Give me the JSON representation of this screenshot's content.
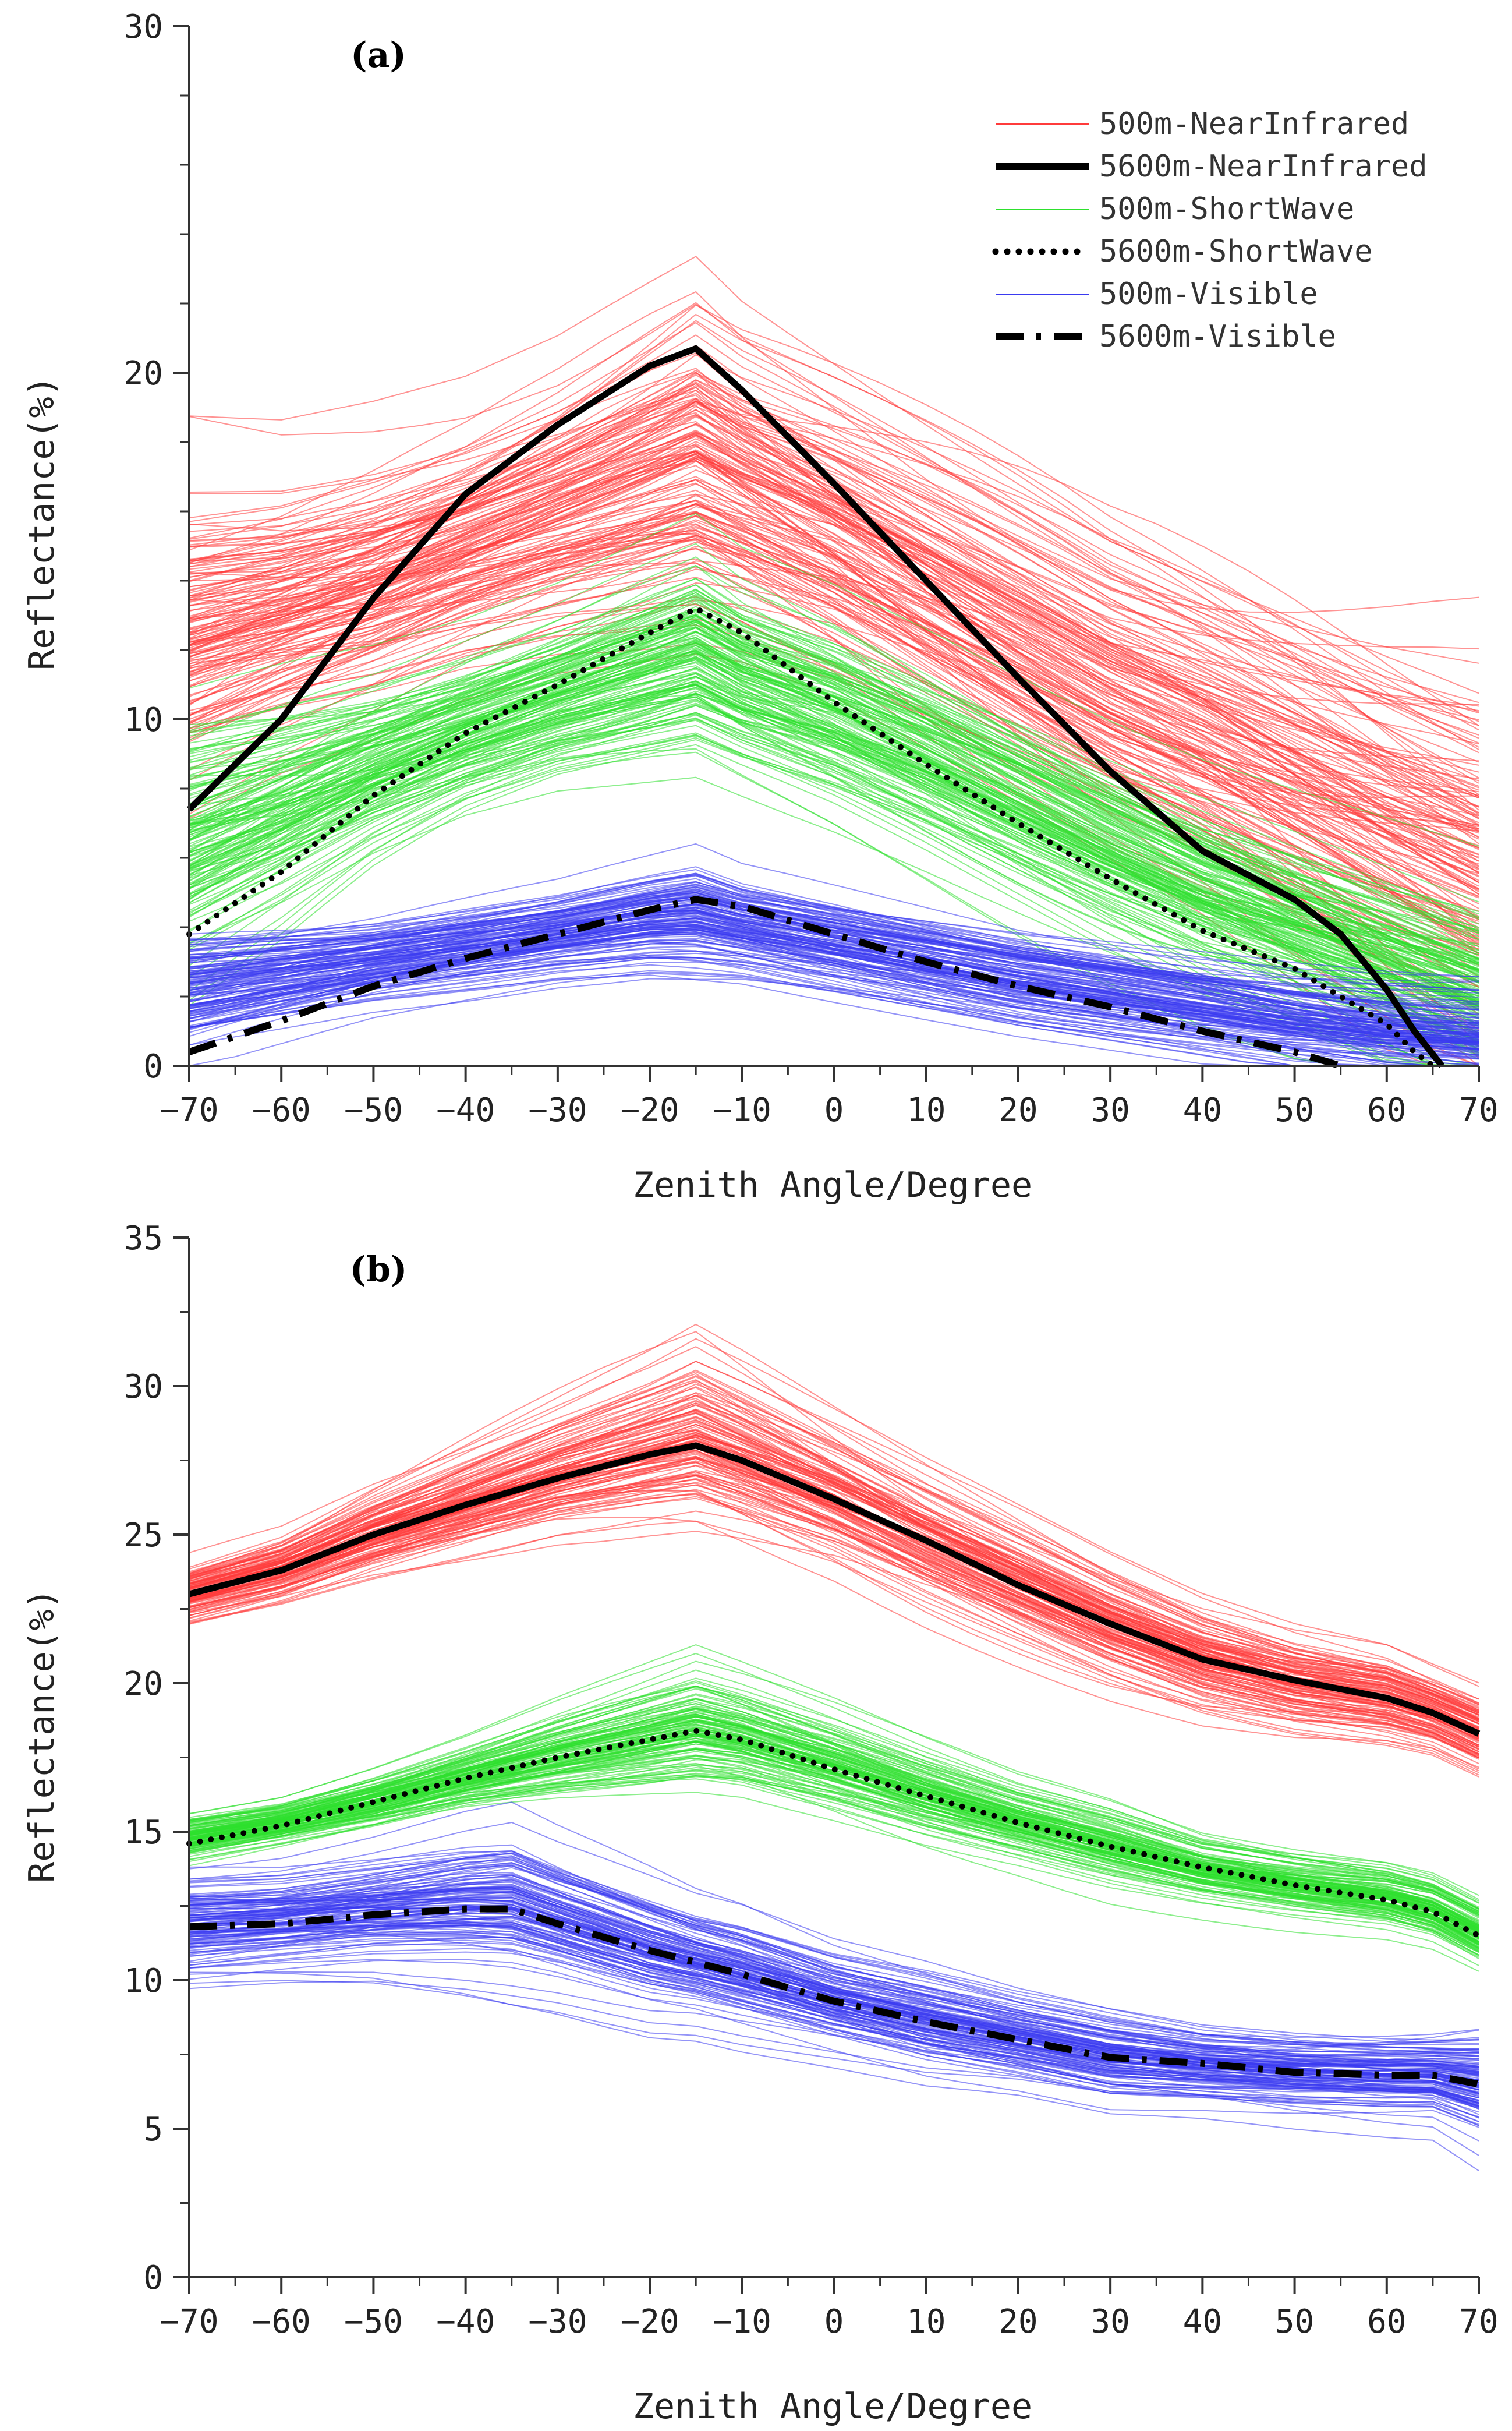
{
  "colors": {
    "near_infrared_500m": "#ff3b3b",
    "shortwave_500m": "#2ee02e",
    "visible_500m": "#3a3af0",
    "mean_5600m": "#000000",
    "axis": "#333333"
  },
  "chart_data": [
    {
      "id": "a",
      "panel_label": "(a)",
      "type": "line",
      "xlabel": "Zenith Angle/Degree",
      "ylabel": "Reflectance(%)",
      "xlim": [
        -70,
        70
      ],
      "ylim": [
        0,
        30
      ],
      "x_ticks": [
        -70,
        -60,
        -50,
        -40,
        -30,
        -20,
        -10,
        0,
        10,
        20,
        30,
        40,
        50,
        60,
        70
      ],
      "y_ticks": [
        0,
        10,
        20,
        30
      ],
      "x_tick_labels": [
        "−70",
        "−60",
        "−50",
        "−40",
        "−30",
        "−20",
        "−10",
        "0",
        "10",
        "20",
        "30",
        "40",
        "50",
        "60",
        "70"
      ],
      "y_tick_labels": [
        "0",
        "10",
        "20",
        "30"
      ],
      "legend": {
        "position": "top-right",
        "entries": [
          {
            "label": "500m-NearInfrared",
            "style": "thin",
            "color_key": "near_infrared_500m"
          },
          {
            "label": "5600m-NearInfrared",
            "style": "solid",
            "color_key": "mean_5600m"
          },
          {
            "label": "500m-ShortWave",
            "style": "thin",
            "color_key": "shortwave_500m"
          },
          {
            "label": "5600m-ShortWave",
            "style": "dotted",
            "color_key": "mean_5600m"
          },
          {
            "label": "500m-Visible",
            "style": "thin",
            "color_key": "visible_500m"
          },
          {
            "label": "5600m-Visible",
            "style": "dashdot",
            "color_key": "mean_5600m"
          }
        ]
      },
      "bands": [
        {
          "name": "500m-NearInfrared",
          "color_key": "near_infrared_500m",
          "count": 160,
          "x": [
            -70,
            -60,
            -50,
            -40,
            -30,
            -20,
            -15,
            -10,
            0,
            10,
            20,
            30,
            40,
            50,
            60,
            70
          ],
          "center": [
            12.5,
            13.2,
            14.0,
            15.0,
            16.0,
            17.0,
            17.5,
            16.8,
            15.5,
            14.0,
            12.5,
            11.0,
            9.8,
            8.5,
            7.2,
            6.0
          ],
          "spread": [
            2.2,
            2.0,
            2.0,
            2.0,
            2.2,
            2.6,
            2.8,
            2.6,
            2.5,
            2.5,
            2.5,
            2.5,
            2.6,
            2.8,
            3.0,
            3.2
          ]
        },
        {
          "name": "500m-ShortWave",
          "color_key": "shortwave_500m",
          "count": 160,
          "x": [
            -70,
            -60,
            -50,
            -40,
            -30,
            -20,
            -15,
            -10,
            0,
            10,
            20,
            30,
            40,
            50,
            60,
            70
          ],
          "center": [
            6.5,
            7.5,
            8.6,
            9.6,
            10.5,
            11.3,
            11.7,
            11.0,
            10.0,
            8.8,
            7.5,
            6.2,
            5.0,
            4.0,
            3.0,
            2.0
          ],
          "spread": [
            2.3,
            2.0,
            1.6,
            1.4,
            1.4,
            1.6,
            1.7,
            1.6,
            1.6,
            1.6,
            1.6,
            1.6,
            1.6,
            1.6,
            1.6,
            1.6
          ]
        },
        {
          "name": "500m-Visible",
          "color_key": "visible_500m",
          "count": 140,
          "x": [
            -70,
            -60,
            -50,
            -40,
            -30,
            -20,
            -15,
            -10,
            0,
            10,
            20,
            30,
            40,
            50,
            60,
            70
          ],
          "center": [
            2.2,
            2.6,
            3.0,
            3.4,
            3.8,
            4.2,
            4.3,
            4.0,
            3.5,
            3.0,
            2.5,
            2.1,
            1.7,
            1.3,
            1.0,
            0.8
          ],
          "spread": [
            0.9,
            0.8,
            0.7,
            0.7,
            0.7,
            0.8,
            0.9,
            0.8,
            0.8,
            0.8,
            0.8,
            0.8,
            0.8,
            0.8,
            0.8,
            0.8
          ]
        }
      ],
      "series": [
        {
          "name": "5600m-NearInfrared",
          "style": "solid",
          "x": [
            -70,
            -60,
            -50,
            -40,
            -30,
            -20,
            -15,
            -10,
            0,
            10,
            20,
            30,
            40,
            50,
            55,
            60,
            63,
            66
          ],
          "y": [
            7.4,
            10.0,
            13.5,
            16.5,
            18.5,
            20.2,
            20.7,
            19.5,
            16.8,
            14.0,
            11.2,
            8.5,
            6.2,
            4.8,
            3.8,
            2.2,
            1.0,
            0.0
          ]
        },
        {
          "name": "5600m-ShortWave",
          "style": "dotted",
          "x": [
            -70,
            -60,
            -50,
            -40,
            -30,
            -20,
            -15,
            -10,
            0,
            10,
            20,
            30,
            40,
            50,
            55,
            60,
            63,
            65
          ],
          "y": [
            3.8,
            5.6,
            7.8,
            9.6,
            11.0,
            12.5,
            13.2,
            12.5,
            10.5,
            8.7,
            7.0,
            5.4,
            3.9,
            2.8,
            2.0,
            1.2,
            0.4,
            0.0
          ]
        },
        {
          "name": "5600m-Visible",
          "style": "dashdot",
          "x": [
            -70,
            -60,
            -50,
            -40,
            -30,
            -20,
            -15,
            -10,
            0,
            10,
            20,
            30,
            40,
            50,
            55
          ],
          "y": [
            0.4,
            1.3,
            2.3,
            3.1,
            3.8,
            4.5,
            4.8,
            4.6,
            3.8,
            3.0,
            2.3,
            1.7,
            1.0,
            0.4,
            0.0
          ]
        }
      ]
    },
    {
      "id": "b",
      "panel_label": "(b)",
      "type": "line",
      "xlabel": "Zenith Angle/Degree",
      "ylabel": "Reflectance(%)",
      "xlim": [
        -70,
        70
      ],
      "ylim": [
        0,
        35
      ],
      "x_ticks": [
        -70,
        -60,
        -50,
        -40,
        -30,
        -20,
        -10,
        0,
        10,
        20,
        30,
        40,
        50,
        60,
        70
      ],
      "y_ticks": [
        0,
        5,
        10,
        15,
        20,
        25,
        30,
        35
      ],
      "x_tick_labels": [
        "−70",
        "−60",
        "−50",
        "−40",
        "−30",
        "−20",
        "−10",
        "0",
        "10",
        "20",
        "30",
        "40",
        "50",
        "60",
        "70"
      ],
      "y_tick_labels": [
        "0",
        "5",
        "10",
        "15",
        "20",
        "25",
        "30",
        "35"
      ],
      "bands": [
        {
          "name": "500m-NearInfrared",
          "color_key": "near_infrared_500m",
          "count": 130,
          "x": [
            -70,
            -60,
            -50,
            -40,
            -30,
            -20,
            -15,
            -10,
            0,
            10,
            20,
            30,
            40,
            50,
            60,
            65,
            70
          ],
          "center": [
            23.0,
            23.8,
            25.0,
            26.0,
            27.0,
            27.8,
            28.2,
            27.6,
            26.3,
            24.8,
            23.4,
            22.0,
            20.8,
            20.0,
            19.5,
            19.0,
            18.3
          ],
          "spread": [
            0.5,
            0.6,
            0.8,
            1.0,
            1.2,
            1.5,
            1.7,
            1.6,
            1.4,
            1.3,
            1.2,
            1.1,
            1.0,
            0.9,
            0.8,
            0.7,
            0.7
          ]
        },
        {
          "name": "500m-ShortWave",
          "color_key": "shortwave_500m",
          "count": 130,
          "x": [
            -70,
            -60,
            -50,
            -40,
            -30,
            -20,
            -15,
            -10,
            0,
            10,
            20,
            30,
            40,
            50,
            60,
            65,
            70
          ],
          "center": [
            14.8,
            15.3,
            16.0,
            16.8,
            17.5,
            18.1,
            18.4,
            18.1,
            17.2,
            16.2,
            15.3,
            14.5,
            13.7,
            13.2,
            12.8,
            12.4,
            11.6
          ],
          "spread": [
            0.4,
            0.4,
            0.5,
            0.6,
            0.8,
            1.0,
            1.1,
            1.0,
            0.9,
            0.8,
            0.7,
            0.7,
            0.6,
            0.6,
            0.6,
            0.6,
            0.6
          ]
        },
        {
          "name": "500m-Visible",
          "color_key": "visible_500m",
          "count": 130,
          "x": [
            -70,
            -60,
            -50,
            -40,
            -35,
            -30,
            -20,
            -15,
            -10,
            0,
            10,
            20,
            30,
            40,
            50,
            60,
            65,
            70
          ],
          "center": [
            11.8,
            12.0,
            12.3,
            12.5,
            12.5,
            12.0,
            11.0,
            10.6,
            10.2,
            9.3,
            8.6,
            8.0,
            7.4,
            7.1,
            6.9,
            6.8,
            6.8,
            6.5
          ],
          "spread": [
            0.9,
            0.9,
            1.0,
            1.2,
            1.3,
            1.2,
            1.1,
            1.0,
            1.0,
            0.9,
            0.9,
            0.8,
            0.8,
            0.7,
            0.7,
            0.7,
            0.7,
            0.9
          ]
        }
      ],
      "series": [
        {
          "name": "5600m-NearInfrared",
          "style": "solid",
          "x": [
            -70,
            -60,
            -50,
            -40,
            -30,
            -20,
            -15,
            -10,
            0,
            10,
            20,
            30,
            40,
            50,
            60,
            65,
            70
          ],
          "y": [
            23.0,
            23.8,
            25.0,
            26.0,
            26.9,
            27.7,
            28.0,
            27.5,
            26.2,
            24.8,
            23.3,
            22.0,
            20.8,
            20.1,
            19.5,
            19.0,
            18.3
          ]
        },
        {
          "name": "5600m-ShortWave",
          "style": "dotted",
          "x": [
            -70,
            -60,
            -50,
            -40,
            -30,
            -20,
            -15,
            -10,
            0,
            10,
            20,
            30,
            40,
            50,
            60,
            65,
            70
          ],
          "y": [
            14.6,
            15.2,
            16.0,
            16.8,
            17.5,
            18.1,
            18.4,
            18.1,
            17.1,
            16.2,
            15.3,
            14.5,
            13.8,
            13.2,
            12.7,
            12.3,
            11.5
          ]
        },
        {
          "name": "5600m-Visible",
          "style": "dashdot",
          "x": [
            -70,
            -60,
            -50,
            -40,
            -35,
            -30,
            -20,
            -15,
            -10,
            0,
            10,
            20,
            30,
            40,
            50,
            60,
            65,
            70
          ],
          "y": [
            11.8,
            11.9,
            12.2,
            12.4,
            12.4,
            11.9,
            11.0,
            10.6,
            10.2,
            9.3,
            8.6,
            8.0,
            7.4,
            7.2,
            6.9,
            6.8,
            6.8,
            6.5
          ]
        }
      ]
    }
  ]
}
